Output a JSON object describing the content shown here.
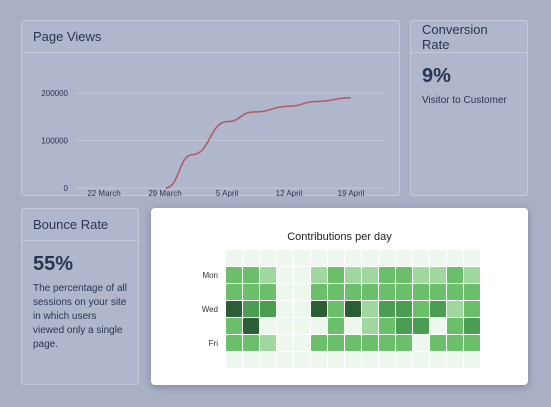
{
  "page_views": {
    "title": "Page Views",
    "chart_data": {
      "type": "line",
      "title": "",
      "xlabel": "",
      "ylabel": "",
      "x_ticks": [
        "22 March",
        "29 March",
        "5 April",
        "12 April",
        "19 April"
      ],
      "y_ticks": [
        "200000",
        "100000",
        "0"
      ],
      "ylim": [
        0,
        200000
      ],
      "series": [
        {
          "color": "#b05a63",
          "x": [
            "29 March",
            "1 April",
            "5 April",
            "8 April",
            "12 April",
            "15 April",
            "19 April"
          ],
          "y": [
            0,
            70000,
            140000,
            160000,
            172000,
            182000,
            190000
          ]
        }
      ]
    }
  },
  "conversion": {
    "title": "Conversion Rate",
    "value": "9%",
    "desc": "Visitor to Customer"
  },
  "bounce": {
    "title": "Bounce Rate",
    "value": "55%",
    "desc": "The percentage of all sessions on your site in which users viewed only a single page."
  },
  "contributions": {
    "title": "Contributions per day",
    "chart_data": {
      "type": "heatmap",
      "row_labels": [
        "Mon",
        "Wed",
        "Fri"
      ],
      "label_rows": [
        1,
        3,
        5
      ],
      "levels": 4,
      "colors": [
        "#eef7ee",
        "#9fd79f",
        "#6bbf6b",
        "#4a9d52",
        "#2c5e35"
      ],
      "grid": [
        [
          0,
          0,
          0,
          0,
          0,
          0,
          0,
          0,
          0,
          0,
          0,
          0,
          0,
          0,
          0
        ],
        [
          2,
          2,
          1,
          0,
          0,
          1,
          2,
          1,
          1,
          2,
          2,
          1,
          1,
          2,
          1
        ],
        [
          2,
          2,
          2,
          0,
          0,
          2,
          2,
          2,
          2,
          2,
          2,
          2,
          2,
          2,
          2
        ],
        [
          4,
          3,
          3,
          0,
          0,
          4,
          2,
          4,
          1,
          3,
          3,
          2,
          3,
          1,
          2
        ],
        [
          2,
          4,
          0,
          0,
          0,
          0,
          2,
          0,
          1,
          2,
          3,
          3,
          0,
          2,
          3
        ],
        [
          2,
          2,
          1,
          0,
          0,
          2,
          2,
          2,
          2,
          2,
          2,
          0,
          2,
          2,
          2
        ],
        [
          0,
          0,
          0,
          0,
          0,
          0,
          0,
          0,
          0,
          0,
          0,
          0,
          0,
          0,
          0
        ]
      ]
    }
  }
}
